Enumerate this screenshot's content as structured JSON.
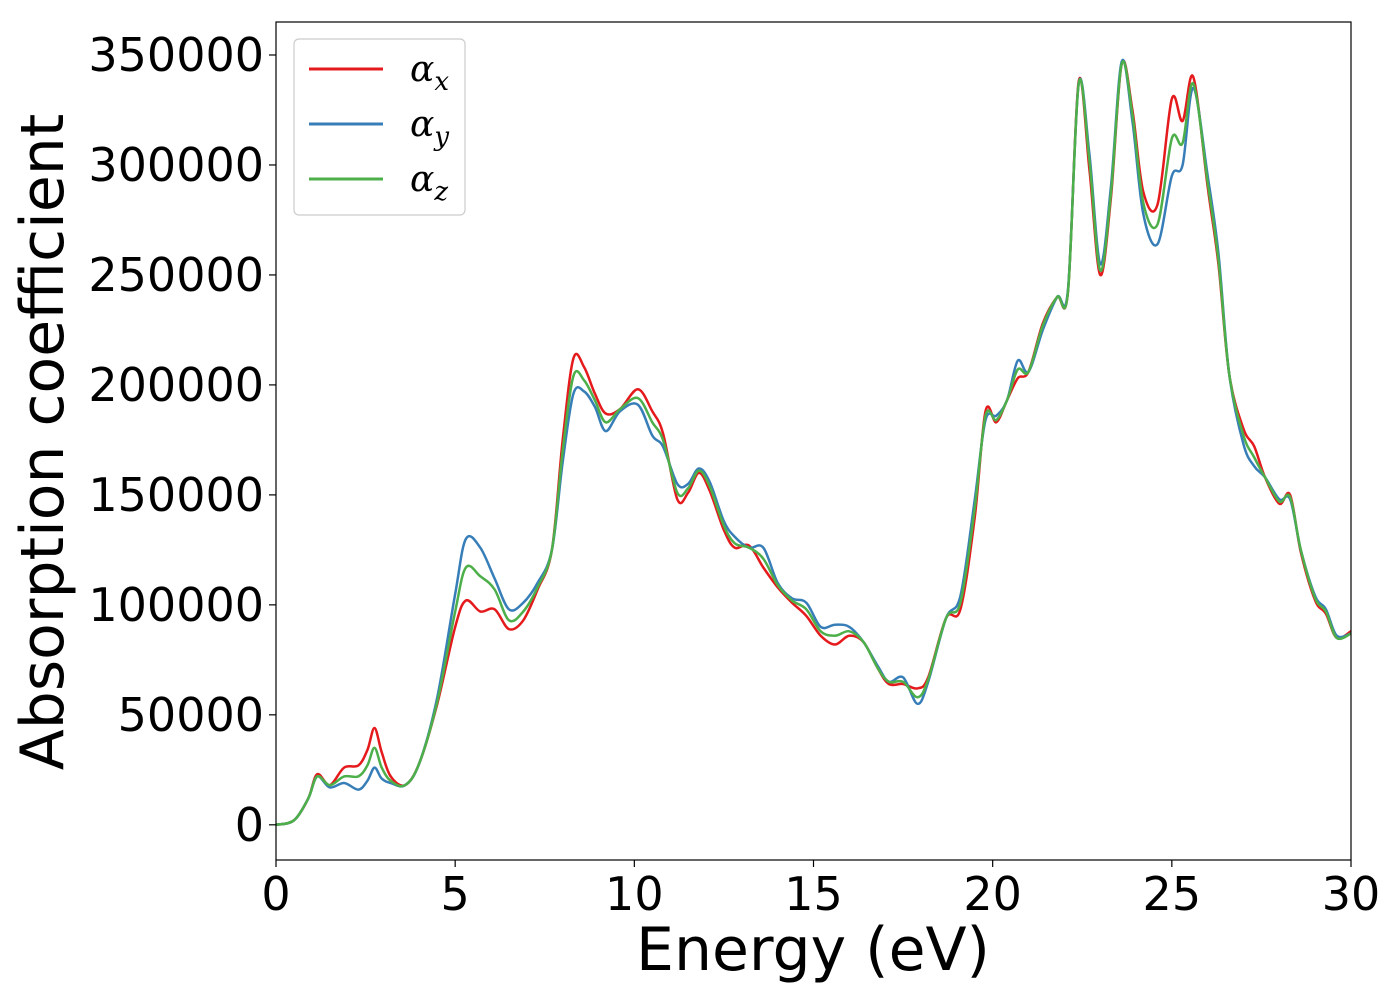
{
  "chart_data": {
    "type": "line",
    "xlabel": "Energy (eV)",
    "ylabel": "Absorption coefficient",
    "xlim": [
      0,
      30
    ],
    "ylim": [
      -16000,
      365000
    ],
    "xticks": [
      0,
      5,
      10,
      15,
      20,
      25,
      30
    ],
    "yticks": [
      0,
      50000,
      100000,
      150000,
      200000,
      250000,
      300000,
      350000
    ],
    "grid": false,
    "legend_position": "top-left",
    "series": [
      {
        "name": "x",
        "color": "#e41a1c",
        "points": [
          [
            0,
            0
          ],
          [
            0.5,
            2000
          ],
          [
            0.9,
            12000
          ],
          [
            1.15,
            23000
          ],
          [
            1.5,
            18000
          ],
          [
            1.9,
            26000
          ],
          [
            2.3,
            27000
          ],
          [
            2.55,
            34000
          ],
          [
            2.75,
            44000
          ],
          [
            2.95,
            33000
          ],
          [
            3.2,
            22000
          ],
          [
            3.6,
            18000
          ],
          [
            4.0,
            28000
          ],
          [
            4.5,
            55000
          ],
          [
            5.0,
            90000
          ],
          [
            5.3,
            102000
          ],
          [
            5.7,
            97000
          ],
          [
            6.1,
            98000
          ],
          [
            6.5,
            89000
          ],
          [
            6.9,
            93000
          ],
          [
            7.3,
            107000
          ],
          [
            7.7,
            125000
          ],
          [
            8.0,
            175000
          ],
          [
            8.3,
            212000
          ],
          [
            8.6,
            208000
          ],
          [
            8.9,
            196000
          ],
          [
            9.2,
            187000
          ],
          [
            9.6,
            189000
          ],
          [
            10.1,
            198000
          ],
          [
            10.5,
            188000
          ],
          [
            10.8,
            178000
          ],
          [
            11.2,
            148000
          ],
          [
            11.5,
            151000
          ],
          [
            11.8,
            160000
          ],
          [
            12.1,
            152000
          ],
          [
            12.5,
            134000
          ],
          [
            12.8,
            126000
          ],
          [
            13.2,
            127000
          ],
          [
            13.6,
            117000
          ],
          [
            14.0,
            108000
          ],
          [
            14.4,
            101000
          ],
          [
            14.8,
            95000
          ],
          [
            15.2,
            86000
          ],
          [
            15.6,
            82000
          ],
          [
            16.0,
            86000
          ],
          [
            16.4,
            83000
          ],
          [
            16.8,
            71000
          ],
          [
            17.1,
            64000
          ],
          [
            17.5,
            64000
          ],
          [
            17.9,
            62000
          ],
          [
            18.2,
            67000
          ],
          [
            18.7,
            94000
          ],
          [
            19.1,
            98000
          ],
          [
            19.5,
            140000
          ],
          [
            19.8,
            188000
          ],
          [
            20.1,
            183000
          ],
          [
            20.4,
            193000
          ],
          [
            20.7,
            203000
          ],
          [
            21.0,
            206000
          ],
          [
            21.4,
            228000
          ],
          [
            21.8,
            240000
          ],
          [
            22.1,
            242000
          ],
          [
            22.4,
            338000
          ],
          [
            22.7,
            298000
          ],
          [
            23.0,
            250000
          ],
          [
            23.3,
            285000
          ],
          [
            23.6,
            346000
          ],
          [
            23.9,
            325000
          ],
          [
            24.2,
            288000
          ],
          [
            24.6,
            282000
          ],
          [
            25.0,
            330000
          ],
          [
            25.3,
            320000
          ],
          [
            25.6,
            340000
          ],
          [
            26.0,
            290000
          ],
          [
            26.3,
            255000
          ],
          [
            26.6,
            205000
          ],
          [
            27.0,
            180000
          ],
          [
            27.3,
            172000
          ],
          [
            27.6,
            158000
          ],
          [
            28.0,
            146000
          ],
          [
            28.3,
            150000
          ],
          [
            28.6,
            124000
          ],
          [
            29.0,
            102000
          ],
          [
            29.3,
            96000
          ],
          [
            29.6,
            85000
          ],
          [
            30.0,
            88000
          ]
        ]
      },
      {
        "name": "y",
        "color": "#377eb8",
        "points": [
          [
            0,
            0
          ],
          [
            0.5,
            2000
          ],
          [
            0.9,
            12000
          ],
          [
            1.15,
            22000
          ],
          [
            1.5,
            17000
          ],
          [
            1.9,
            19000
          ],
          [
            2.3,
            16000
          ],
          [
            2.55,
            20000
          ],
          [
            2.75,
            26000
          ],
          [
            2.95,
            21000
          ],
          [
            3.2,
            19000
          ],
          [
            3.6,
            18000
          ],
          [
            4.0,
            28000
          ],
          [
            4.5,
            58000
          ],
          [
            5.0,
            105000
          ],
          [
            5.3,
            130000
          ],
          [
            5.7,
            126000
          ],
          [
            6.1,
            112000
          ],
          [
            6.5,
            98000
          ],
          [
            6.9,
            101000
          ],
          [
            7.3,
            110000
          ],
          [
            7.7,
            125000
          ],
          [
            8.0,
            165000
          ],
          [
            8.3,
            196000
          ],
          [
            8.6,
            197000
          ],
          [
            8.9,
            190000
          ],
          [
            9.2,
            179000
          ],
          [
            9.6,
            188000
          ],
          [
            10.1,
            191000
          ],
          [
            10.5,
            177000
          ],
          [
            10.8,
            172000
          ],
          [
            11.2,
            155000
          ],
          [
            11.5,
            155000
          ],
          [
            11.8,
            162000
          ],
          [
            12.1,
            156000
          ],
          [
            12.5,
            138000
          ],
          [
            12.8,
            131000
          ],
          [
            13.2,
            126000
          ],
          [
            13.6,
            126000
          ],
          [
            14.0,
            110000
          ],
          [
            14.4,
            103000
          ],
          [
            14.8,
            101000
          ],
          [
            15.2,
            90000
          ],
          [
            15.6,
            91000
          ],
          [
            16.0,
            90000
          ],
          [
            16.4,
            83000
          ],
          [
            16.8,
            72000
          ],
          [
            17.1,
            65000
          ],
          [
            17.5,
            67000
          ],
          [
            17.9,
            55000
          ],
          [
            18.2,
            65000
          ],
          [
            18.7,
            94000
          ],
          [
            19.1,
            104000
          ],
          [
            19.5,
            148000
          ],
          [
            19.8,
            184000
          ],
          [
            20.1,
            186000
          ],
          [
            20.4,
            193000
          ],
          [
            20.7,
            211000
          ],
          [
            21.0,
            206000
          ],
          [
            21.4,
            225000
          ],
          [
            21.8,
            240000
          ],
          [
            22.1,
            243000
          ],
          [
            22.4,
            337000
          ],
          [
            22.7,
            305000
          ],
          [
            23.0,
            255000
          ],
          [
            23.3,
            290000
          ],
          [
            23.6,
            347000
          ],
          [
            23.9,
            320000
          ],
          [
            24.2,
            278000
          ],
          [
            24.6,
            264000
          ],
          [
            25.0,
            295000
          ],
          [
            25.3,
            300000
          ],
          [
            25.6,
            335000
          ],
          [
            26.0,
            295000
          ],
          [
            26.3,
            260000
          ],
          [
            26.6,
            205000
          ],
          [
            27.0,
            173000
          ],
          [
            27.3,
            163000
          ],
          [
            27.6,
            158000
          ],
          [
            28.0,
            148000
          ],
          [
            28.3,
            148000
          ],
          [
            28.6,
            125000
          ],
          [
            29.0,
            104000
          ],
          [
            29.3,
            98000
          ],
          [
            29.6,
            86000
          ],
          [
            30.0,
            87000
          ]
        ]
      },
      {
        "name": "z",
        "color": "#4daf4a",
        "points": [
          [
            0,
            0
          ],
          [
            0.5,
            2000
          ],
          [
            0.9,
            12000
          ],
          [
            1.15,
            22000
          ],
          [
            1.5,
            18000
          ],
          [
            1.9,
            22000
          ],
          [
            2.3,
            22000
          ],
          [
            2.55,
            27000
          ],
          [
            2.75,
            35000
          ],
          [
            2.95,
            26000
          ],
          [
            3.2,
            20000
          ],
          [
            3.6,
            18000
          ],
          [
            4.0,
            28000
          ],
          [
            4.5,
            56000
          ],
          [
            5.0,
            97000
          ],
          [
            5.3,
            117000
          ],
          [
            5.7,
            113000
          ],
          [
            6.1,
            107000
          ],
          [
            6.5,
            93000
          ],
          [
            6.9,
            97000
          ],
          [
            7.3,
            108000
          ],
          [
            7.7,
            125000
          ],
          [
            8.0,
            170000
          ],
          [
            8.3,
            204000
          ],
          [
            8.6,
            202000
          ],
          [
            8.9,
            193000
          ],
          [
            9.2,
            183000
          ],
          [
            9.6,
            189000
          ],
          [
            10.1,
            194000
          ],
          [
            10.5,
            183000
          ],
          [
            10.8,
            175000
          ],
          [
            11.2,
            151000
          ],
          [
            11.5,
            153000
          ],
          [
            11.8,
            161000
          ],
          [
            12.1,
            154000
          ],
          [
            12.5,
            136000
          ],
          [
            12.8,
            128000
          ],
          [
            13.2,
            126000
          ],
          [
            13.6,
            121000
          ],
          [
            14.0,
            109000
          ],
          [
            14.4,
            102000
          ],
          [
            14.8,
            98000
          ],
          [
            15.2,
            88000
          ],
          [
            15.6,
            86000
          ],
          [
            16.0,
            88000
          ],
          [
            16.4,
            83000
          ],
          [
            16.8,
            71000
          ],
          [
            17.1,
            65000
          ],
          [
            17.5,
            65000
          ],
          [
            17.9,
            58000
          ],
          [
            18.2,
            66000
          ],
          [
            18.7,
            94000
          ],
          [
            19.1,
            101000
          ],
          [
            19.5,
            144000
          ],
          [
            19.8,
            186000
          ],
          [
            20.1,
            184000
          ],
          [
            20.4,
            193000
          ],
          [
            20.7,
            207000
          ],
          [
            21.0,
            206000
          ],
          [
            21.4,
            227000
          ],
          [
            21.8,
            240000
          ],
          [
            22.1,
            242000
          ],
          [
            22.4,
            337000
          ],
          [
            22.7,
            302000
          ],
          [
            23.0,
            252000
          ],
          [
            23.3,
            287000
          ],
          [
            23.6,
            346000
          ],
          [
            23.9,
            323000
          ],
          [
            24.2,
            283000
          ],
          [
            24.6,
            273000
          ],
          [
            25.0,
            312000
          ],
          [
            25.3,
            310000
          ],
          [
            25.6,
            337000
          ],
          [
            26.0,
            292000
          ],
          [
            26.3,
            257000
          ],
          [
            26.6,
            205000
          ],
          [
            27.0,
            177000
          ],
          [
            27.3,
            167000
          ],
          [
            27.6,
            158000
          ],
          [
            28.0,
            147000
          ],
          [
            28.3,
            149000
          ],
          [
            28.6,
            125000
          ],
          [
            29.0,
            103000
          ],
          [
            29.3,
            97000
          ],
          [
            29.6,
            85000
          ],
          [
            30.0,
            87000
          ]
        ]
      }
    ]
  }
}
